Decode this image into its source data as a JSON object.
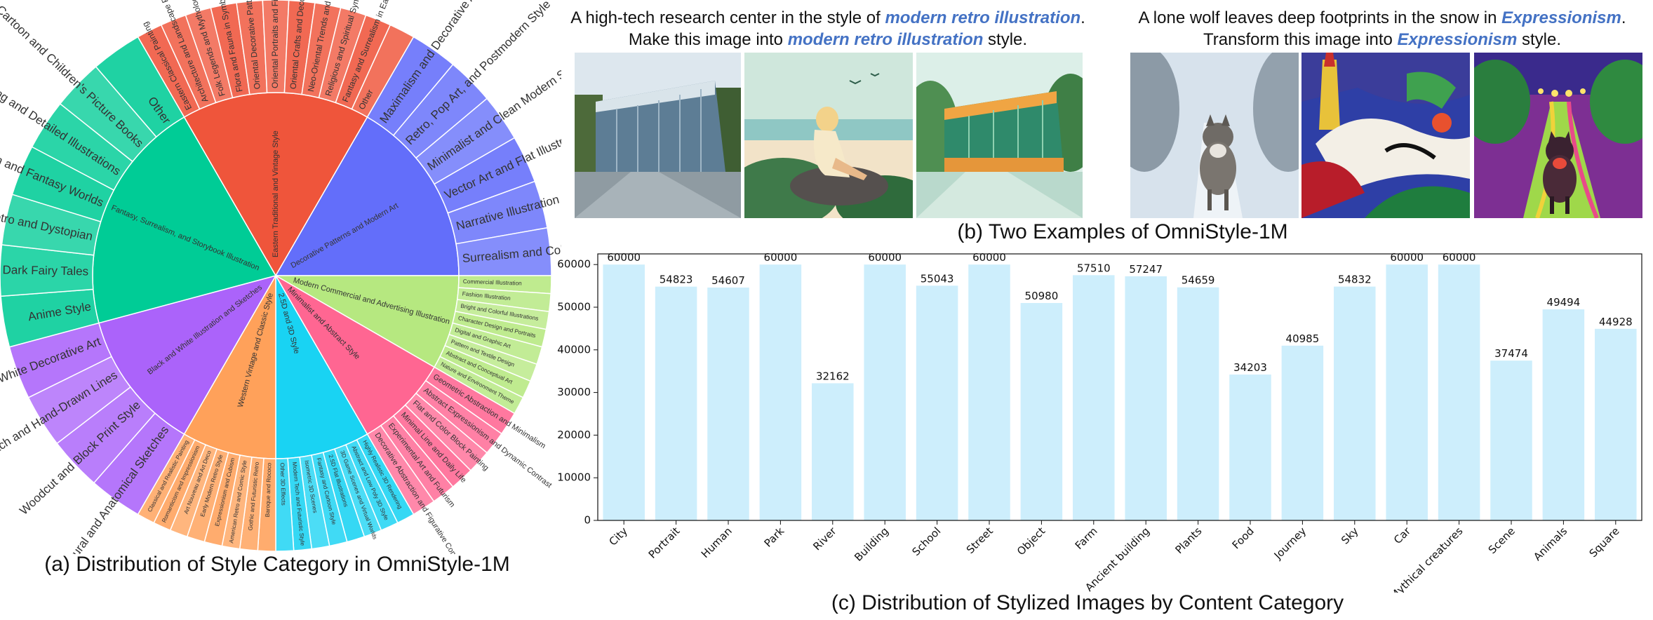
{
  "figure": {
    "caption_a": "(a) Distribution of Style Category in OmniStyle-1M",
    "caption_b": "(b) Two Examples of OmniStyle-1M",
    "caption_c": "(c) Distribution of Stylized Images by Content Category"
  },
  "examples": [
    {
      "line1_pre": "A high-tech research center in the style of ",
      "line1_style": "modern retro illustration",
      "line1_post": ".",
      "line2_pre": "Make this image into ",
      "line2_style": "modern retro illustration",
      "line2_post": " style."
    },
    {
      "line1_pre": "A lone wolf leaves deep footprints in the snow in ",
      "line1_style": "Expressionism",
      "line1_post": ".",
      "line2_pre": "Transform this image into ",
      "line2_style": "Expressionism",
      "line2_post": " style."
    }
  ],
  "chart_data": [
    {
      "type": "sunburst",
      "title": "",
      "inner": [
        {
          "name": "Eastern Traditional and Vintage Style",
          "color": "#ef553b",
          "children": [
            "Eastern Classical Painting",
            "Architecture and Landscape Painting",
            "Folk Legends and Mythology",
            "Flora and Fauna in Symbolism and Nature Worship",
            "Oriental Decorative Patterns and Motifs",
            "Oriental Portraits and Figures",
            "Oriental Crafts and Decorative Arts",
            "Neo-Oriental Trends and Modern Styles",
            "Religious and Spiritual Symbols",
            "Fantasy and Surrealism in Eastern Style",
            "Other"
          ]
        },
        {
          "name": "Decorative Patterns and Modern Art",
          "color": "#636efa",
          "children": [
            "Maximalism and Decorative Abstract Style",
            "Retro, Pop Art, and Postmodern Style",
            "Minimalist and Clean Modern Style",
            "Vector Art and Flat Illustration Style",
            "Narrative Illustration and Storytelling Style",
            "Surrealism and Colorful Fantasy Style"
          ]
        },
        {
          "name": "Modern Commercial and Advertising Illustration",
          "color": "#b6e880",
          "children": [
            "Commercial Illustration",
            "Fashion Illustration",
            "Bright and Colorful Illustrations",
            "Character Design and Portraits",
            "Digital and Graphic Art",
            "Pattern and Textile Design",
            "Abstract and Conceptual Art",
            "Nature and Environment Theme"
          ]
        },
        {
          "name": "Minimalist and Abstract Style",
          "color": "#ff6692",
          "children": [
            "Geometric Abstraction and Minimalism",
            "Abstract Expressionism and Dynamic Contrast",
            "Flat and Color Block Painting",
            "Minimal Line and Daily Life",
            "Experimental Art and Futurism",
            "Decorative Abstraction and Figurative Combination"
          ]
        },
        {
          "name": "2.5D and 3D Style",
          "color": "#19d3f3",
          "children": [
            "Highly Realistic 3D Rendering",
            "Abstract and Low Poly 3D Style",
            "3D Game Scenes and Virtual Worlds",
            "2.5D Flat Illustrations",
            "Fantasy and Cartoon Style",
            "Isometric 3D Scenes",
            "Modern Tech and Futuristic Style",
            "Other 3D Effects"
          ]
        },
        {
          "name": "Western Vintage and Classic Style",
          "color": "#ffa15a",
          "children": [
            "Baroque and Rococo",
            "Gothic and Futuristic Retro",
            "American Retro and Comic Style",
            "Expressionism and Cubism",
            "Early Modern Retro Style",
            "Art Nouveau and Art Deco",
            "Romanticism and Impressionism",
            "Classical and Realistic Painting"
          ]
        },
        {
          "name": "Black and White Illustration and Sketches",
          "color": "#ab63fa",
          "children": [
            "Architectural and Anatomical Sketches",
            "Woodcut and Block Print Style",
            "Sketch and Hand-Drawn Lines",
            "Black and White Decorative Art"
          ]
        },
        {
          "name": "Fantasy, Surrealism, and Storybook Illustration",
          "color": "#00cc96",
          "children": [
            "Anime Style",
            "Gothic Fantasy and Dark Fairy Tales",
            "Retro and Dystopian",
            "Surrealism and Fantasy Worlds",
            "Healing and Detailed Illustrations",
            "Cartoon and Children's Picture Books",
            "Other"
          ]
        }
      ]
    },
    {
      "type": "bar",
      "title": "",
      "xlabel": "",
      "ylabel": "",
      "categories": [
        "City",
        "Portrait",
        "Human",
        "Park",
        "River",
        "Building",
        "School",
        "Street",
        "Object",
        "Farm",
        "Ancient building",
        "Plants",
        "Food",
        "Journey",
        "Sky",
        "Car",
        "Mythical creatures",
        "Scene",
        "Animals",
        "Square"
      ],
      "values": [
        60000,
        54823,
        54607,
        60000,
        32162,
        60000,
        55043,
        60000,
        50980,
        57510,
        57247,
        54659,
        34203,
        40985,
        54832,
        60000,
        60000,
        37474,
        49494,
        44928
      ],
      "data_labels": [
        "60000",
        "54823",
        "54607",
        "60000",
        "32162",
        "60000",
        "55043",
        "60000",
        "50980",
        "57510",
        "57247",
        "54659",
        "34203",
        "40985",
        "54832",
        "60000",
        "60000",
        "37474",
        "49494",
        "44928"
      ],
      "ylim": [
        0,
        62500
      ],
      "yticks": [
        "0",
        "10000",
        "20000",
        "30000",
        "40000",
        "50000",
        "60000"
      ],
      "bar_color": "#cdeefc",
      "grid": false,
      "legend": "none"
    }
  ]
}
